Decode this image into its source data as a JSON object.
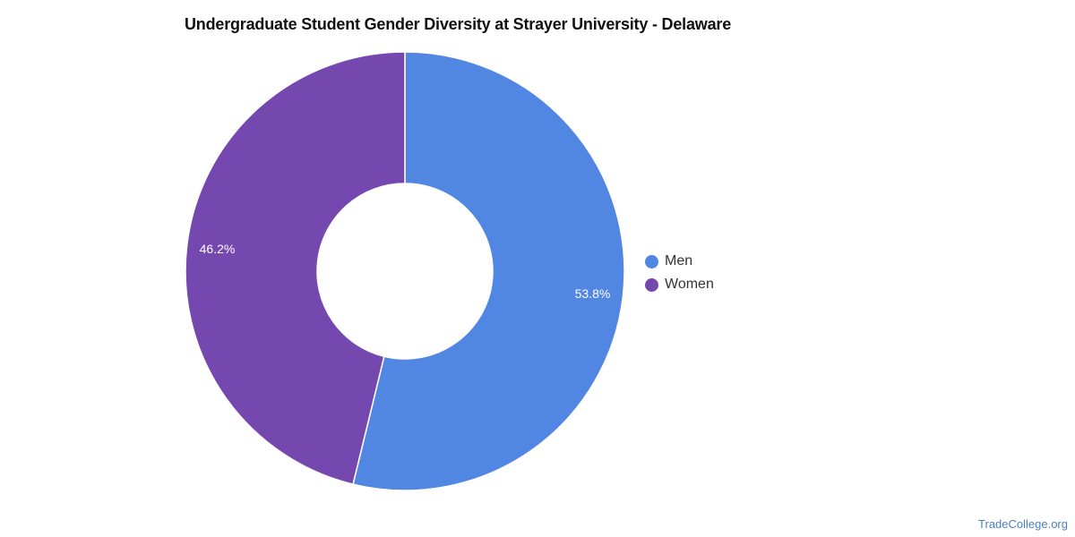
{
  "chart_data": {
    "type": "pie",
    "variant": "donut",
    "title": "Undergraduate Student Gender Diversity at Strayer University - Delaware",
    "slices": [
      {
        "label": "Men",
        "value": 53.8,
        "value_label": "53.8%",
        "color": "#5286e3"
      },
      {
        "label": "Women",
        "value": 46.2,
        "value_label": "46.2%",
        "color": "#7548b0"
      }
    ],
    "legend_position": "right"
  },
  "watermark": "TradeCollege.org"
}
